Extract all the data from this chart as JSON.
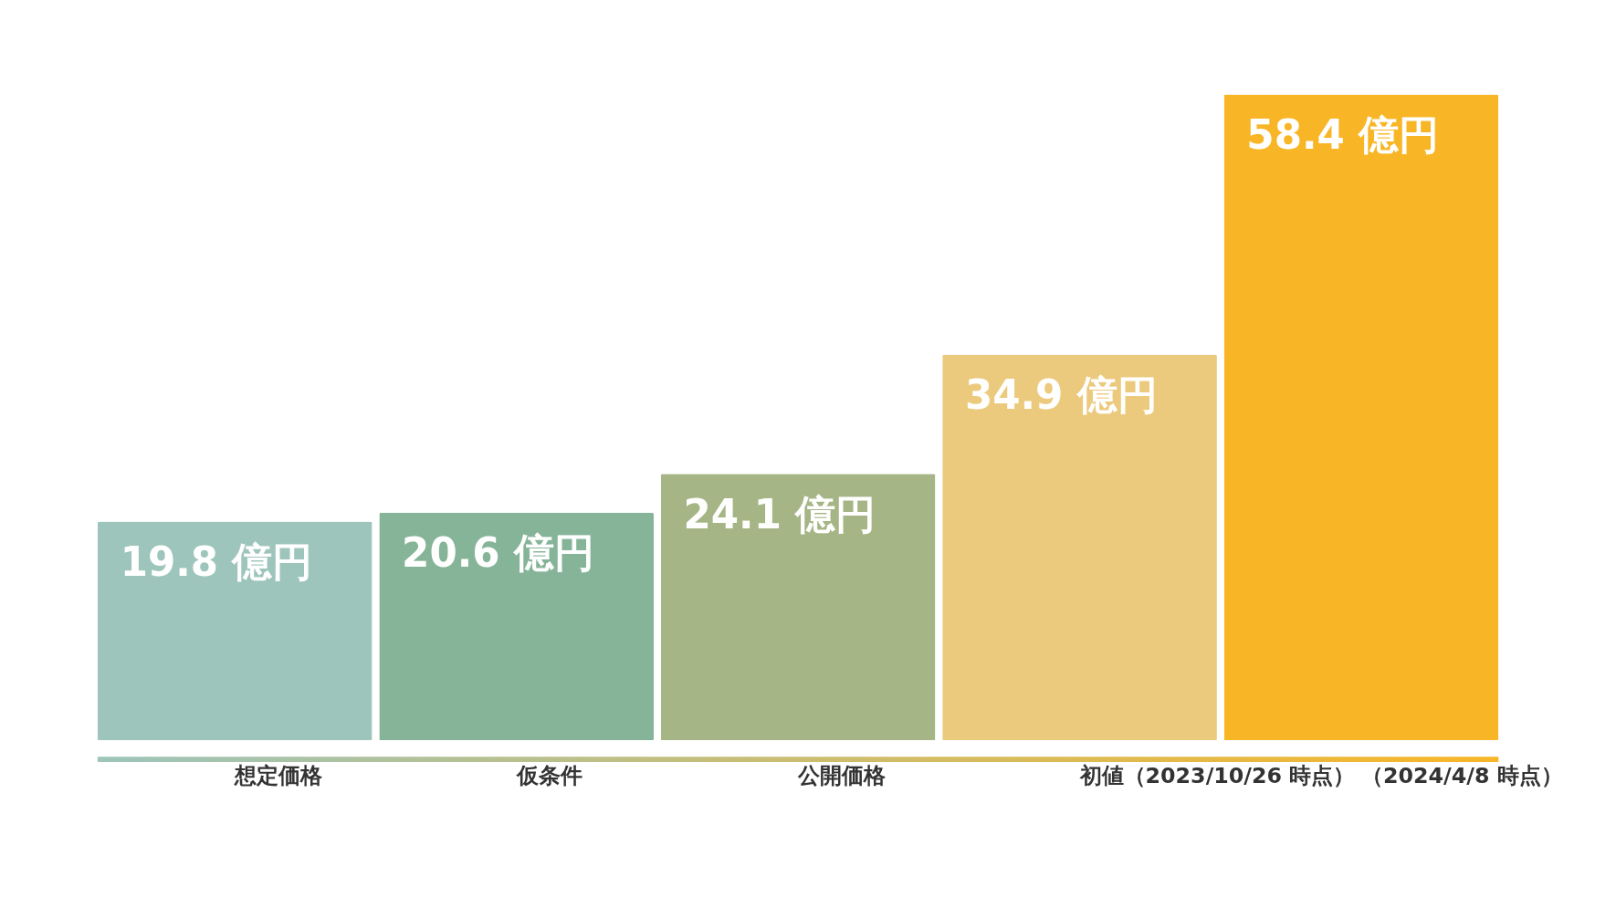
{
  "chart_data": {
    "type": "bar",
    "categories": [
      "想定価格",
      "仮条件",
      "公開価格",
      "初値（2023/10/26 時点）",
      "（2024/4/8 時点）"
    ],
    "values": [
      19.8,
      20.6,
      24.1,
      34.9,
      58.4
    ],
    "colors": [
      "#9dc5bb",
      "#86b498",
      "#a6b585",
      "#ecca7d",
      "#f8b627"
    ],
    "value_labels": [
      "19.8 億円",
      "20.6 億円",
      "24.1 億円",
      "34.9 億円",
      "58.4 億円"
    ],
    "grid": false,
    "legend": false
  }
}
